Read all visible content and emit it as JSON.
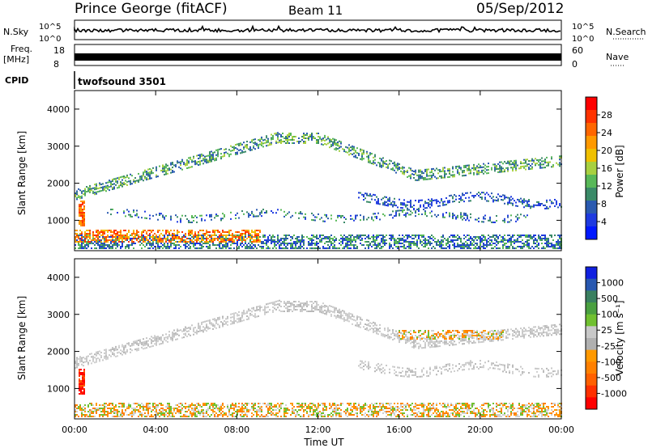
{
  "header": {
    "station": "Prince George (fitACF)",
    "beam": "Beam 11",
    "date": "05/Sep/2012"
  },
  "strips": {
    "nsky_label": "N.Sky",
    "nsky_ticks": [
      "10^5",
      "10^0"
    ],
    "nsearch_label": "N.Search",
    "nsearch_ticks": [
      "10^5",
      "10^0"
    ],
    "freq_label_1": "Freq.",
    "freq_label_2": "[MHz]",
    "freq_ticks": [
      "18",
      "8"
    ],
    "nave_label": "Nave",
    "nave_ticks": [
      "60",
      "0"
    ],
    "cpid_label": "CPID",
    "cpid_value": "twofsound 3501"
  },
  "chart_data": [
    {
      "type": "heatmap",
      "name": "power",
      "ylabel": "Slant Range [km]",
      "xlabel": "",
      "ylim": [
        180,
        4500
      ],
      "yticks": [
        "4000",
        "3000",
        "2000",
        "1000"
      ],
      "ytick_values": [
        4000,
        3000,
        2000,
        1000
      ],
      "colorbar": {
        "label": "Power [dB]",
        "ticks": [
          "28",
          "24",
          "20",
          "16",
          "12",
          "8",
          "4"
        ],
        "colors": [
          "#ff0000",
          "#ff3300",
          "#ff6600",
          "#ff9900",
          "#f0c000",
          "#a8d040",
          "#58b858",
          "#3a8a68",
          "#2a5ab0",
          "#1e3ae0",
          "#0018ff"
        ]
      }
    },
    {
      "type": "heatmap",
      "name": "velocity",
      "ylabel": "Slant Range [km]",
      "xlabel": "Time UT",
      "ylim": [
        180,
        4500
      ],
      "yticks": [
        "4000",
        "3000",
        "2000",
        "1000"
      ],
      "ytick_values": [
        4000,
        3000,
        2000,
        1000
      ],
      "xticks": [
        "00:00",
        "04:00",
        "08:00",
        "12:00",
        "16:00",
        "20:00",
        "00:00"
      ],
      "xtick_hours": [
        0,
        4,
        8,
        12,
        16,
        20,
        24
      ],
      "xlim_hours": [
        0,
        24
      ],
      "colorbar": {
        "label": "Velocity [m s⁻¹]",
        "ticks": [
          "1000",
          "500",
          "100",
          "25",
          "-25",
          "-100",
          "-500",
          "-1000"
        ],
        "colors": [
          "#1020e0",
          "#2858b0",
          "#3a8060",
          "#4aa040",
          "#70c030",
          "#c8c8c8",
          "#b0b0b0",
          "#ff9900",
          "#ff8000",
          "#ff6000",
          "#ff3000",
          "#ff0000"
        ]
      }
    }
  ]
}
